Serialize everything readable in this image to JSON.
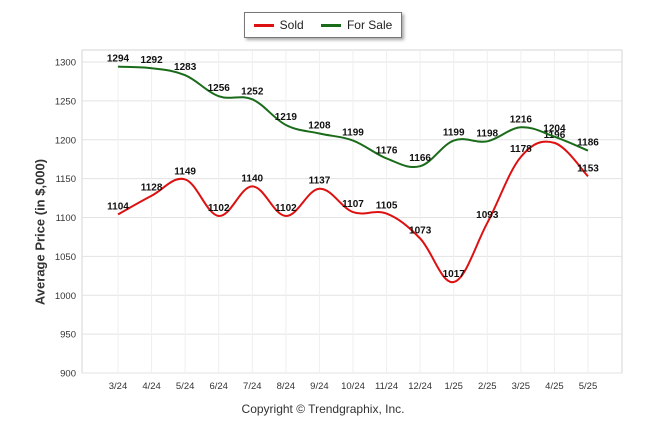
{
  "chart_data": {
    "type": "line",
    "categories": [
      "3/24",
      "4/24",
      "5/24",
      "6/24",
      "7/24",
      "8/24",
      "9/24",
      "10/24",
      "11/24",
      "12/24",
      "1/25",
      "2/25",
      "3/25",
      "4/25",
      "5/25"
    ],
    "series": [
      {
        "name": "Sold",
        "color": "#dd1111",
        "values": [
          1104,
          1128,
          1149,
          1102,
          1140,
          1102,
          1137,
          1107,
          1105,
          1073,
          1017,
          1093,
          1178,
          1196,
          1153
        ]
      },
      {
        "name": "For Sale",
        "color": "#1a6b1a",
        "values": [
          1294,
          1292,
          1283,
          1256,
          1252,
          1219,
          1208,
          1199,
          1176,
          1166,
          1199,
          1198,
          1216,
          1204,
          1186
        ]
      }
    ],
    "title": "",
    "xlabel": "",
    "ylabel": "Average Price (in $,000)",
    "ylim": [
      900,
      1300
    ],
    "yticks": [
      900,
      950,
      1000,
      1050,
      1100,
      1150,
      1200,
      1250,
      1300
    ],
    "grid": true,
    "legend": "top-center"
  },
  "footer": {
    "copyright": "Copyright © Trendgraphix, Inc."
  }
}
